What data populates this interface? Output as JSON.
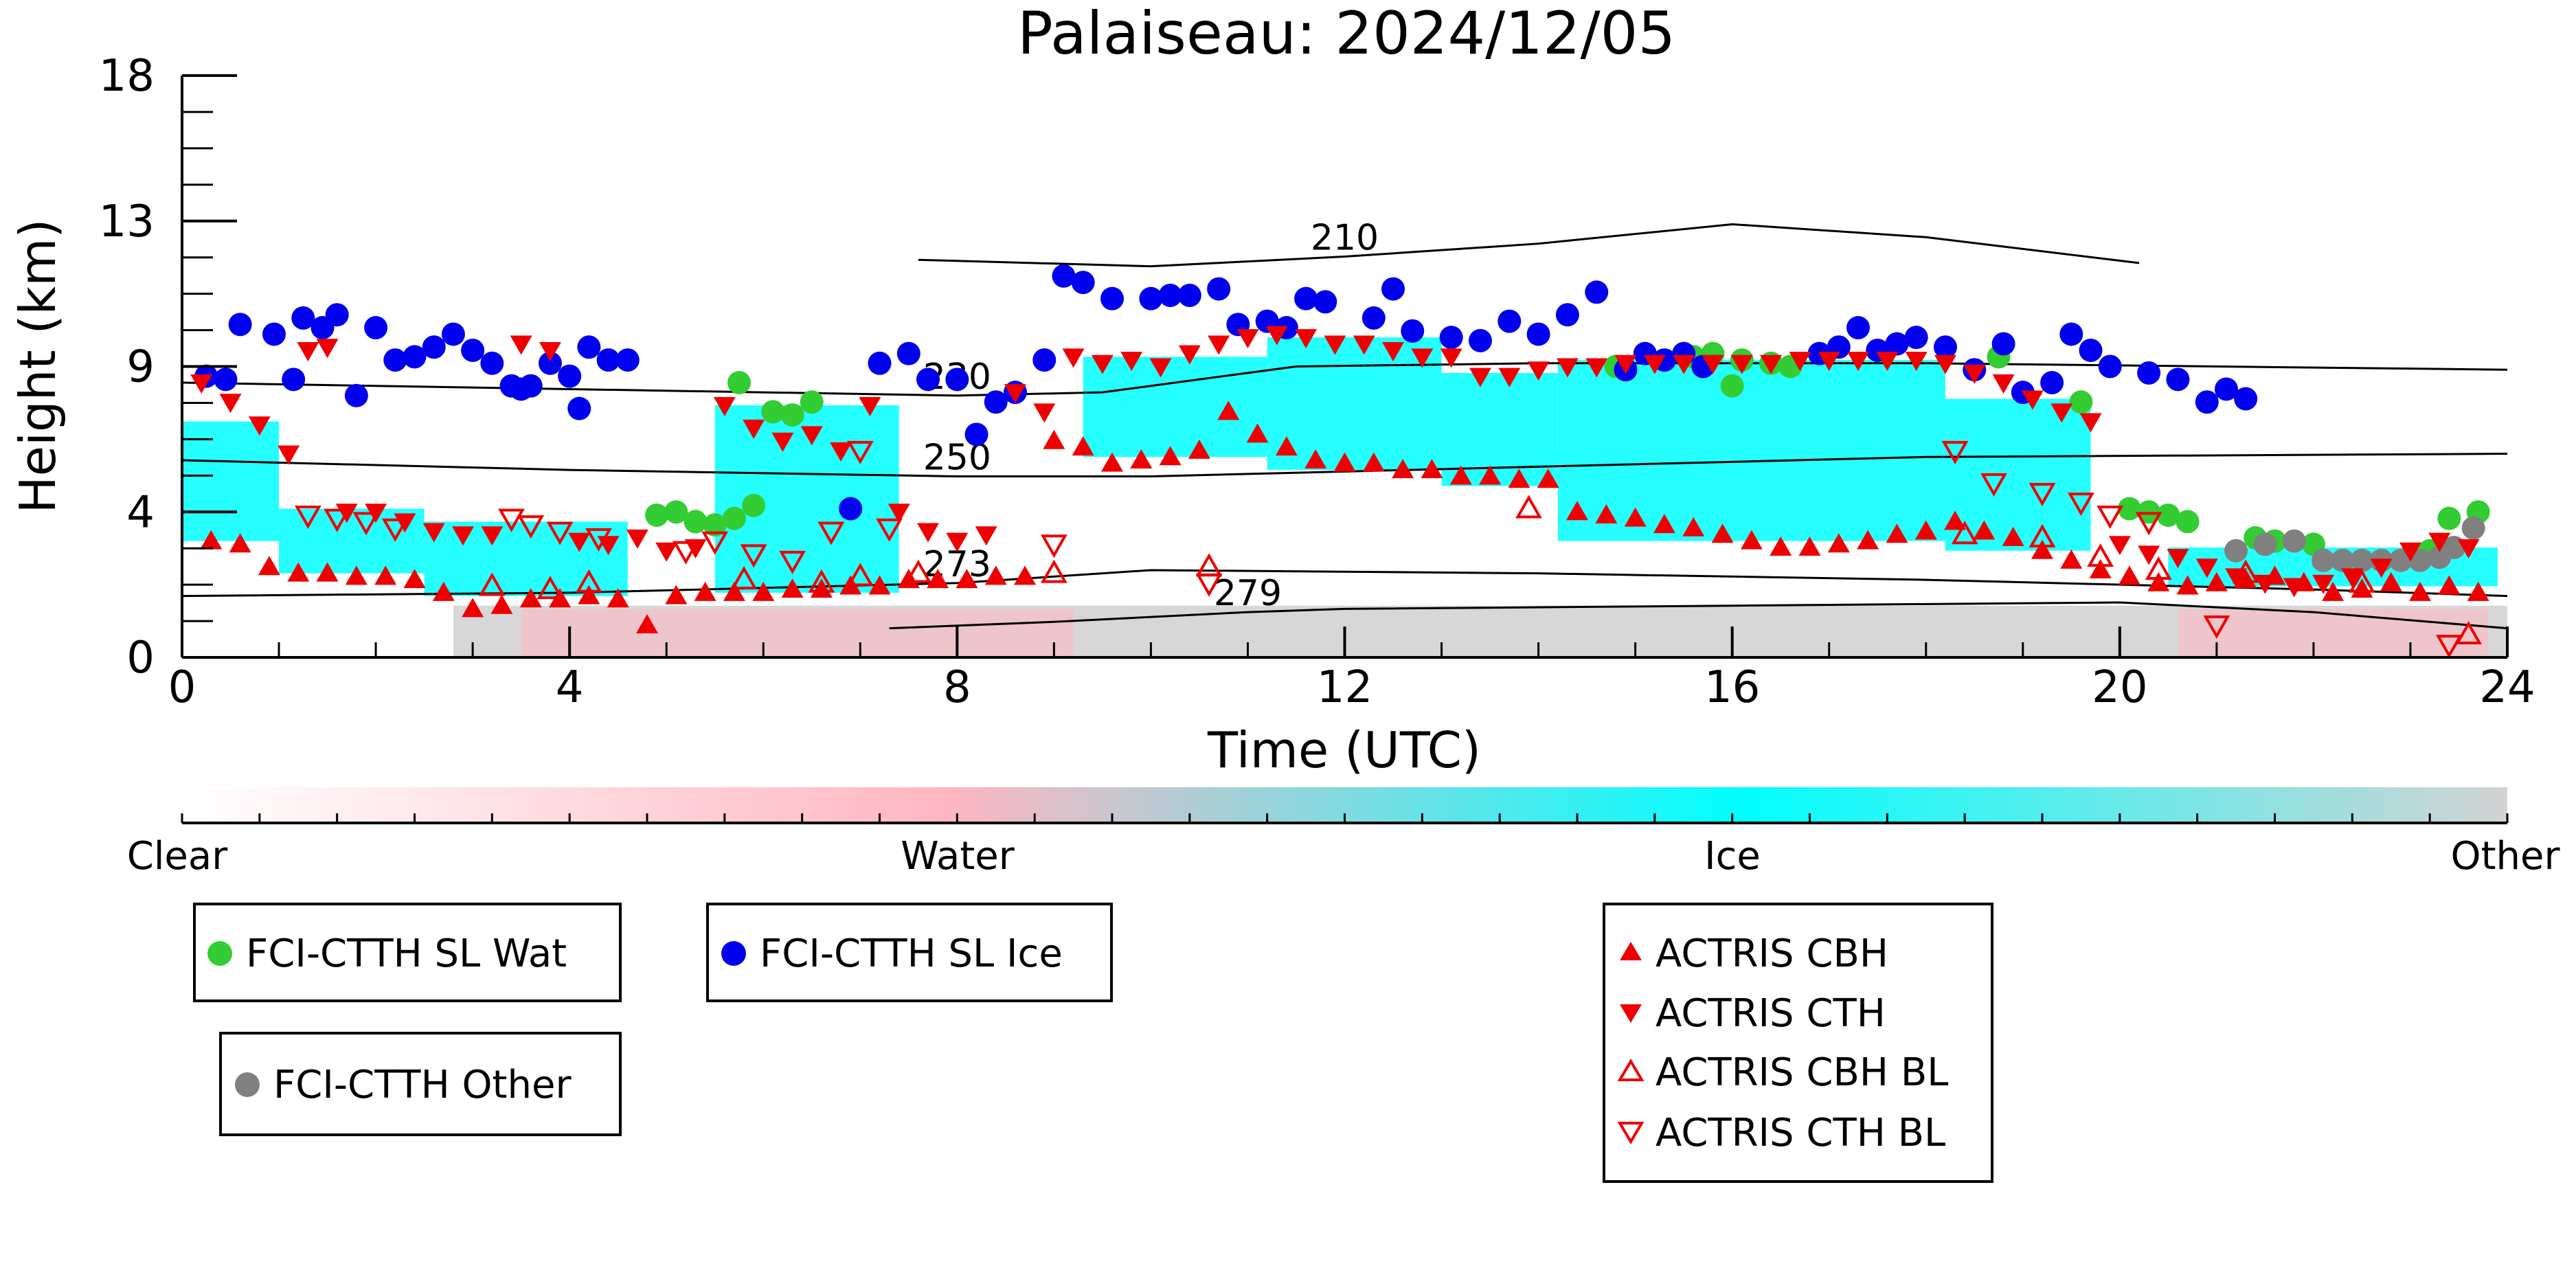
{
  "chart_data": {
    "type": "scatter",
    "title": "Palaiseau: 2024/12/05",
    "xlabel": "Time (UTC)",
    "ylabel": "Height (km)",
    "xlim": [
      0,
      24
    ],
    "ylim": [
      0,
      18
    ],
    "x_ticks": [
      "0",
      "4",
      "8",
      "12",
      "16",
      "20",
      "24"
    ],
    "y_ticks": [
      "0",
      "4",
      "9",
      "13",
      "18"
    ],
    "colorbar": {
      "labels": [
        "Clear",
        "Water",
        "Ice",
        "Other"
      ],
      "colors": {
        "Clear": "#ffffff",
        "Water": "#ffb6c1",
        "Ice": "#00ffff",
        "Other": "#d3d3d3"
      }
    },
    "contours": [
      {
        "label": "210",
        "points": [
          [
            7.6,
            12.3
          ],
          [
            10,
            12.1
          ],
          [
            12,
            12.4
          ],
          [
            14,
            12.8
          ],
          [
            16,
            13.4
          ],
          [
            18,
            13.0
          ],
          [
            20.2,
            12.2
          ]
        ]
      },
      {
        "label": "230",
        "points": [
          [
            0,
            8.5
          ],
          [
            4,
            8.3
          ],
          [
            8,
            8.1
          ],
          [
            9.5,
            8.2
          ],
          [
            11.5,
            9.0
          ],
          [
            14,
            9.1
          ],
          [
            18,
            9.1
          ],
          [
            24,
            8.9
          ]
        ]
      },
      {
        "label": "250",
        "points": [
          [
            0,
            6.1
          ],
          [
            4,
            5.8
          ],
          [
            8,
            5.6
          ],
          [
            10,
            5.6
          ],
          [
            14,
            5.9
          ],
          [
            18,
            6.2
          ],
          [
            24,
            6.3
          ]
        ]
      },
      {
        "label": "273",
        "points": [
          [
            0,
            1.9
          ],
          [
            4,
            2.0
          ],
          [
            8,
            2.3
          ],
          [
            10,
            2.7
          ],
          [
            14,
            2.6
          ],
          [
            18,
            2.4
          ],
          [
            22,
            2.1
          ],
          [
            24,
            1.9
          ]
        ]
      },
      {
        "label": "279",
        "points": [
          [
            7.3,
            0.9
          ],
          [
            9,
            1.1
          ],
          [
            11,
            1.4
          ],
          [
            12,
            1.5
          ],
          [
            16,
            1.6
          ],
          [
            20,
            1.7
          ],
          [
            22,
            1.4
          ],
          [
            24,
            0.9
          ]
        ]
      }
    ],
    "series": [
      {
        "name": "FCI-CTTH SL Wat",
        "marker": "circle",
        "color": "#33cc33",
        "x": [
          4.9,
          5.1,
          5.3,
          5.5,
          5.7,
          5.9,
          5.75,
          6.1,
          6.3,
          6.5,
          14.8,
          15.3,
          15.6,
          15.8,
          16.0,
          16.1,
          16.4,
          16.6,
          18.75,
          19.6,
          20.1,
          20.3,
          20.5,
          20.7,
          21.4,
          21.6,
          22.0,
          23.2,
          23.4,
          23.7
        ],
        "y": [
          4.4,
          4.5,
          4.2,
          4.1,
          4.3,
          4.7,
          8.5,
          7.6,
          7.5,
          7.9,
          9.0,
          9.2,
          9.3,
          9.4,
          8.4,
          9.2,
          9.1,
          9.0,
          9.3,
          7.9,
          4.6,
          4.5,
          4.4,
          4.2,
          3.7,
          3.6,
          3.5,
          3.3,
          4.3,
          4.5
        ]
      },
      {
        "name": "FCI-CTTH SL Ice",
        "marker": "circle",
        "color": "#0000ee",
        "x": [
          0.25,
          0.45,
          0.6,
          0.95,
          1.15,
          1.25,
          1.45,
          1.6,
          1.8,
          2.0,
          2.2,
          2.4,
          2.6,
          2.8,
          3.0,
          3.2,
          3.4,
          3.5,
          3.6,
          3.8,
          4.0,
          4.1,
          4.2,
          4.4,
          4.6,
          6.9,
          7.2,
          7.5,
          7.7,
          8.0,
          8.2,
          8.4,
          8.6,
          8.9,
          9.1,
          9.3,
          9.6,
          10.0,
          10.2,
          10.4,
          10.7,
          10.9,
          11.2,
          11.4,
          11.6,
          11.8,
          12.3,
          12.5,
          12.7,
          13.1,
          13.4,
          13.7,
          14.0,
          14.3,
          14.6,
          14.9,
          15.1,
          15.3,
          15.5,
          15.7,
          16.9,
          17.1,
          17.3,
          17.5,
          17.7,
          17.9,
          18.2,
          18.5,
          18.8,
          19.0,
          19.3,
          19.5,
          19.7,
          19.9,
          20.3,
          20.6,
          20.9,
          21.1,
          21.3
        ],
        "y": [
          8.7,
          8.6,
          10.3,
          10.0,
          8.6,
          10.5,
          10.2,
          10.6,
          8.1,
          10.2,
          9.2,
          9.3,
          9.6,
          10.0,
          9.5,
          9.1,
          8.4,
          8.3,
          8.4,
          9.1,
          8.7,
          7.7,
          9.6,
          9.2,
          9.2,
          4.6,
          9.1,
          9.4,
          8.6,
          8.6,
          6.9,
          7.9,
          8.2,
          9.2,
          11.8,
          11.6,
          11.1,
          11.1,
          11.2,
          11.2,
          11.4,
          10.3,
          10.4,
          10.2,
          11.1,
          11.0,
          10.5,
          11.4,
          10.1,
          9.9,
          9.8,
          10.4,
          10.0,
          10.6,
          11.3,
          8.9,
          9.4,
          9.2,
          9.4,
          9.0,
          9.4,
          9.6,
          10.2,
          9.5,
          9.7,
          9.9,
          9.6,
          8.9,
          9.7,
          8.2,
          8.5,
          10.0,
          9.5,
          9.0,
          8.8,
          8.6,
          7.9,
          8.3,
          8.0
        ]
      },
      {
        "name": "FCI-CTTH Other",
        "marker": "circle",
        "color": "#808080",
        "x": [
          21.2,
          21.5,
          21.8,
          22.1,
          22.3,
          22.5,
          22.7,
          22.9,
          23.1,
          23.3,
          23.45,
          23.65
        ],
        "y": [
          3.3,
          3.5,
          3.6,
          3.0,
          3.0,
          3.0,
          3.0,
          3.0,
          3.0,
          3.1,
          3.4,
          4.0
        ]
      },
      {
        "name": "ACTRIS CBH",
        "marker": "triangle-up",
        "color": "#ee0000",
        "x": [
          0.3,
          0.6,
          0.9,
          1.2,
          1.5,
          1.8,
          2.1,
          2.4,
          2.7,
          3.0,
          3.3,
          3.6,
          3.9,
          4.2,
          4.5,
          4.8,
          5.1,
          5.4,
          5.7,
          6.0,
          6.3,
          6.6,
          6.9,
          7.2,
          7.5,
          7.8,
          8.1,
          8.4,
          8.7,
          9.0,
          9.3,
          9.6,
          9.9,
          10.2,
          10.5,
          10.8,
          11.1,
          11.4,
          11.7,
          12.0,
          12.3,
          12.6,
          12.9,
          13.2,
          13.5,
          13.8,
          14.1,
          14.4,
          14.7,
          15.0,
          15.3,
          15.6,
          15.9,
          16.2,
          16.5,
          16.8,
          17.1,
          17.4,
          17.7,
          18.0,
          18.3,
          18.6,
          18.9,
          19.2,
          19.5,
          19.8,
          20.1,
          20.4,
          20.7,
          21.0,
          21.3,
          21.6,
          21.9,
          22.2,
          22.5,
          22.8,
          23.1,
          23.4,
          23.7
        ],
        "y": [
          3.6,
          3.5,
          2.8,
          2.6,
          2.6,
          2.5,
          2.5,
          2.4,
          2.0,
          1.5,
          1.6,
          1.8,
          1.8,
          1.9,
          1.8,
          1.0,
          1.9,
          2.0,
          2.0,
          2.0,
          2.1,
          2.1,
          2.2,
          2.2,
          2.4,
          2.4,
          2.4,
          2.5,
          2.5,
          6.7,
          6.5,
          6.0,
          6.1,
          6.2,
          6.4,
          7.6,
          6.9,
          6.5,
          6.1,
          6.0,
          6.0,
          5.8,
          5.8,
          5.6,
          5.6,
          5.5,
          5.5,
          4.5,
          4.4,
          4.3,
          4.1,
          4.0,
          3.8,
          3.6,
          3.4,
          3.4,
          3.5,
          3.6,
          3.8,
          3.9,
          4.2,
          3.9,
          3.7,
          3.3,
          3.0,
          2.7,
          2.5,
          2.3,
          2.2,
          2.3,
          2.4,
          2.5,
          2.3,
          2.0,
          2.1,
          2.3,
          2.0,
          2.2,
          2.0
        ]
      },
      {
        "name": "ACTRIS CTH",
        "marker": "triangle-down",
        "color": "#ee0000",
        "x": [
          0.2,
          0.5,
          0.8,
          1.1,
          1.3,
          1.5,
          1.7,
          2.0,
          2.3,
          2.6,
          2.9,
          3.2,
          3.5,
          3.8,
          4.1,
          4.4,
          4.7,
          5.0,
          5.3,
          5.6,
          5.9,
          6.2,
          6.5,
          6.8,
          7.1,
          7.4,
          7.7,
          8.0,
          8.3,
          8.6,
          8.9,
          9.2,
          9.5,
          9.8,
          10.1,
          10.4,
          10.7,
          11.0,
          11.3,
          11.6,
          11.9,
          12.2,
          12.5,
          12.8,
          13.1,
          13.4,
          13.7,
          14.0,
          14.3,
          14.6,
          14.9,
          15.2,
          15.5,
          15.8,
          16.1,
          16.4,
          16.7,
          17.0,
          17.3,
          17.6,
          17.9,
          18.2,
          18.5,
          18.8,
          19.1,
          19.4,
          19.7,
          20.0,
          20.3,
          20.6,
          20.9,
          21.2,
          21.5,
          21.8,
          22.1,
          22.4,
          22.7,
          23.0,
          23.3,
          23.6
        ],
        "y": [
          8.5,
          7.9,
          7.2,
          6.3,
          9.5,
          9.6,
          4.5,
          4.5,
          4.2,
          3.9,
          3.8,
          3.8,
          9.7,
          9.5,
          3.6,
          3.5,
          3.7,
          3.3,
          3.4,
          7.8,
          7.1,
          6.7,
          6.9,
          6.4,
          7.8,
          4.5,
          3.9,
          3.6,
          3.8,
          8.2,
          7.6,
          9.3,
          9.1,
          9.2,
          9.0,
          9.4,
          9.7,
          9.9,
          10.0,
          9.9,
          9.7,
          9.7,
          9.5,
          9.3,
          9.3,
          8.7,
          8.7,
          8.9,
          9.0,
          9.0,
          9.1,
          9.1,
          9.1,
          9.1,
          9.1,
          9.1,
          9.2,
          9.2,
          9.2,
          9.2,
          9.2,
          9.1,
          8.8,
          8.5,
          8.0,
          7.6,
          7.3,
          3.5,
          3.2,
          3.1,
          2.8,
          2.5,
          2.3,
          2.2,
          2.3,
          2.5,
          2.8,
          3.3,
          3.6,
          3.4
        ]
      },
      {
        "name": "ACTRIS CBH BL",
        "marker": "triangle-up-open",
        "color": "#ee0000",
        "x": [
          3.2,
          3.8,
          4.2,
          5.8,
          6.6,
          7.0,
          7.6,
          9.0,
          10.6,
          13.9,
          18.4,
          19.2,
          19.8,
          20.4,
          21.3,
          22.5,
          23.6
        ],
        "y": [
          2.2,
          2.1,
          2.3,
          2.4,
          2.3,
          2.5,
          2.6,
          2.6,
          2.8,
          4.6,
          3.8,
          3.7,
          3.1,
          2.7,
          2.6,
          2.3,
          0.7
        ]
      },
      {
        "name": "ACTRIS CTH BL",
        "marker": "triangle-down-open",
        "color": "#ee0000",
        "x": [
          1.3,
          1.6,
          1.9,
          2.2,
          3.4,
          3.6,
          3.9,
          4.3,
          5.2,
          5.5,
          5.9,
          6.3,
          6.7,
          7.0,
          7.3,
          9.0,
          10.6,
          18.3,
          18.7,
          19.2,
          19.6,
          19.9,
          20.3,
          21.0,
          23.4
        ],
        "y": [
          4.4,
          4.3,
          4.2,
          4.0,
          4.3,
          4.1,
          3.9,
          3.7,
          3.3,
          3.6,
          3.2,
          3.0,
          3.9,
          6.4,
          4.0,
          3.5,
          2.3,
          6.4,
          5.4,
          5.1,
          4.8,
          4.4,
          4.2,
          1.0,
          0.4
        ]
      }
    ]
  }
}
